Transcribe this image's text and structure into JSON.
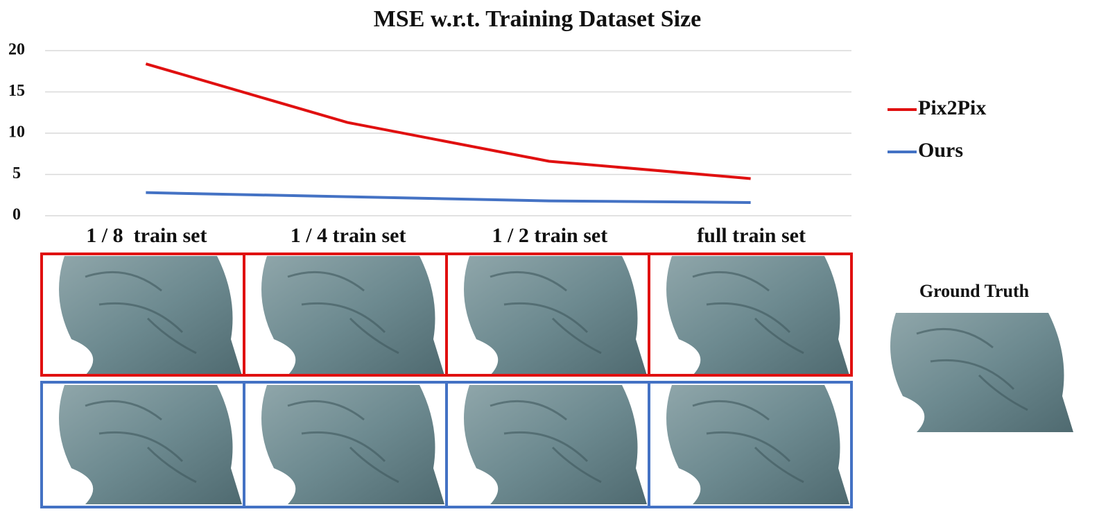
{
  "chart_data": {
    "type": "line",
    "title": "MSE w.r.t. Training Dataset Size",
    "categories": [
      "1 / 8  train set",
      "1 / 4 train set",
      "1 / 2 train set",
      "full train set"
    ],
    "series": [
      {
        "name": "Pix2Pix",
        "color": "#e01010",
        "values": [
          18.4,
          11.3,
          6.6,
          4.5
        ]
      },
      {
        "name": "Ours",
        "color": "#4472c4",
        "values": [
          2.8,
          2.3,
          1.8,
          1.6
        ]
      }
    ],
    "ylim": [
      0,
      20
    ],
    "yticks": [
      0,
      5,
      10,
      15,
      20
    ],
    "grid": true,
    "legend": "right",
    "annotation": "Ground Truth"
  }
}
